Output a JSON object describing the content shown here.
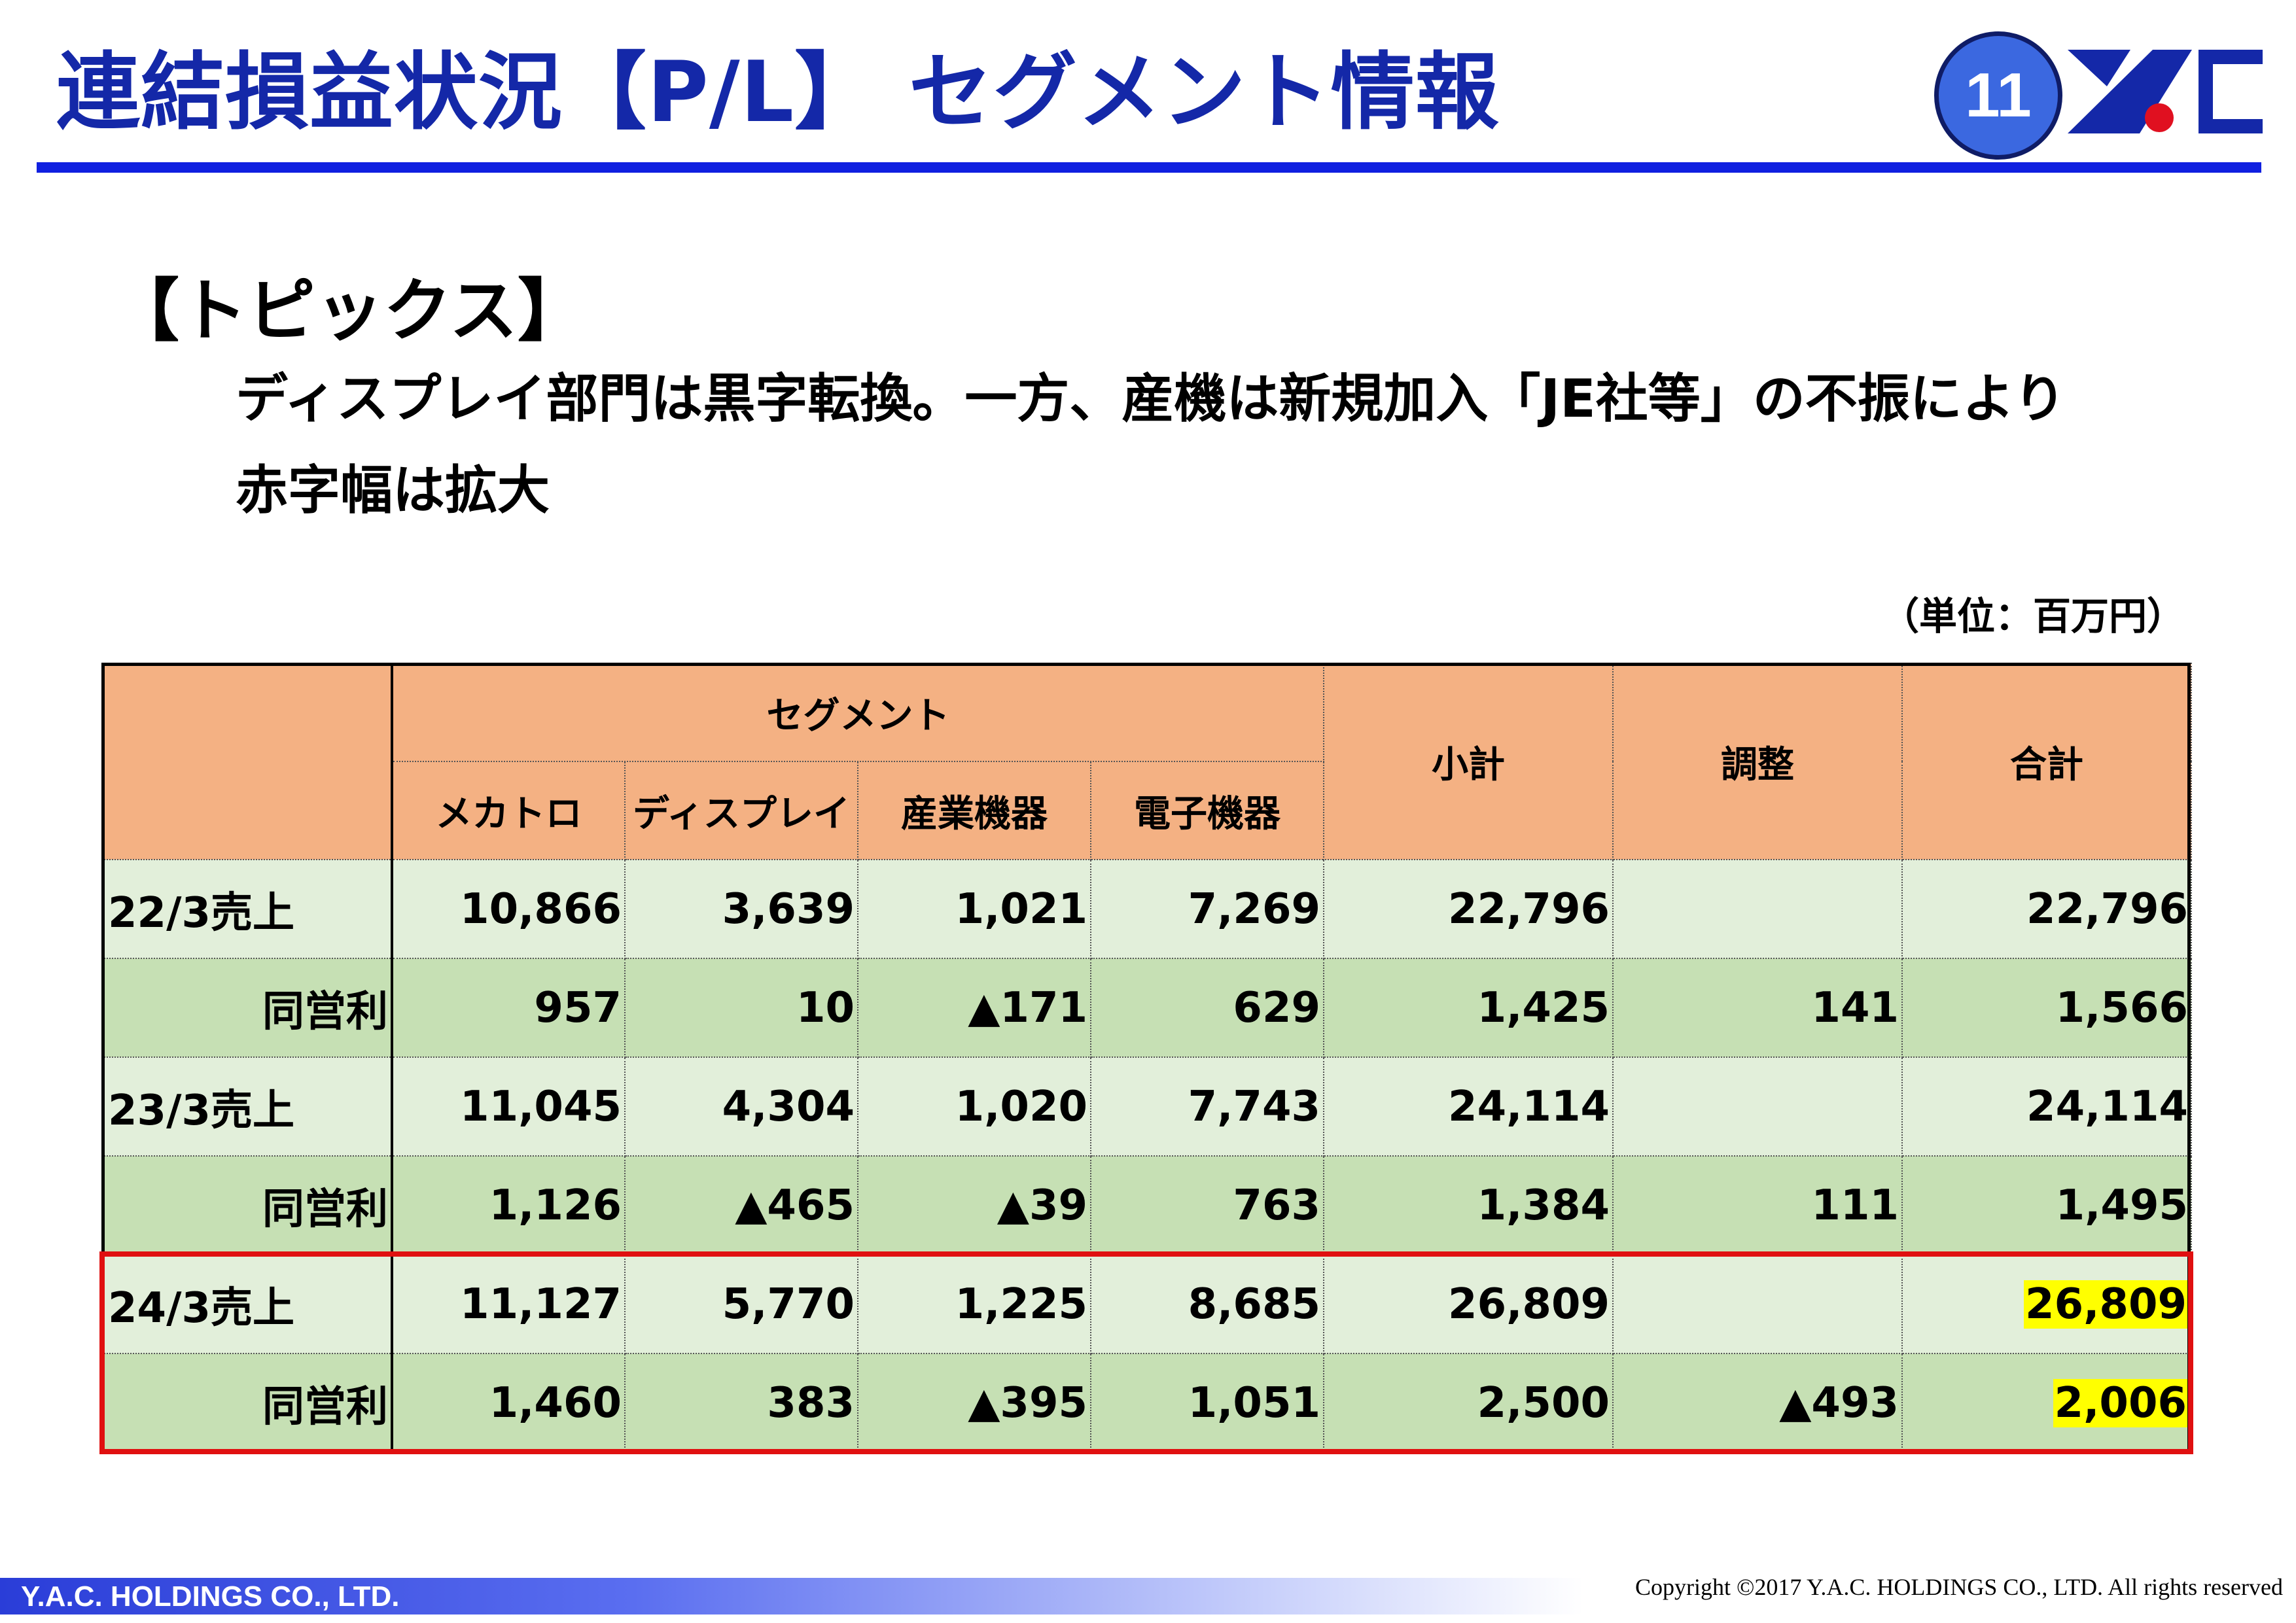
{
  "header": {
    "title": "連結損益状況【P/L】 セグメント情報",
    "page_number": "11",
    "logo_icon": "yac-logo-icon"
  },
  "topics": {
    "heading": "【トピックス】",
    "line1": "ディスプレイ部門は黒字転換。一方、産機は新規加入「JE社等」の不振により",
    "line2": "赤字幅は拡大"
  },
  "unit": "（単位：百万円）",
  "table": {
    "header": {
      "segment": "セグメント",
      "columns": [
        "メカトロ",
        "ディスプレイ",
        "産業機器",
        "電子機器"
      ],
      "subtotal": "小計",
      "adjustment": "調整",
      "total": "合計"
    },
    "rows": [
      {
        "label": "22/3売上",
        "values": [
          "10,866",
          "3,639",
          "1,021",
          "7,269",
          "22,796",
          "",
          "22,796"
        ]
      },
      {
        "label": "同営利",
        "values": [
          "957",
          "10",
          "▲171",
          "629",
          "1,425",
          "141",
          "1,566"
        ]
      },
      {
        "label": "23/3売上",
        "values": [
          "11,045",
          "4,304",
          "1,020",
          "7,743",
          "24,114",
          "",
          "24,114"
        ]
      },
      {
        "label": "同営利",
        "values": [
          "1,126",
          "▲465",
          "▲39",
          "763",
          "1,384",
          "111",
          "1,495"
        ]
      },
      {
        "label": "24/3売上",
        "values": [
          "11,127",
          "5,770",
          "1,225",
          "8,685",
          "26,809",
          "",
          "26,809"
        ]
      },
      {
        "label": "同営利",
        "values": [
          "1,460",
          "383",
          "▲395",
          "1,051",
          "2,500",
          "▲493",
          "2,006"
        ]
      }
    ]
  },
  "colors": {
    "title": "#1428a8",
    "header_fill": "#f4b183",
    "sales_row_fill": "#e2efda",
    "profit_row_fill": "#c6e0b4",
    "highlight_box": "#e01010",
    "highlight_cell": "#ffff00"
  },
  "footer": {
    "company": "Y.A.C. HOLDINGS CO., LTD.",
    "copyright": "Copyright ©2017 Y.A.C. HOLDINGS CO., LTD.  All rights reserved"
  }
}
